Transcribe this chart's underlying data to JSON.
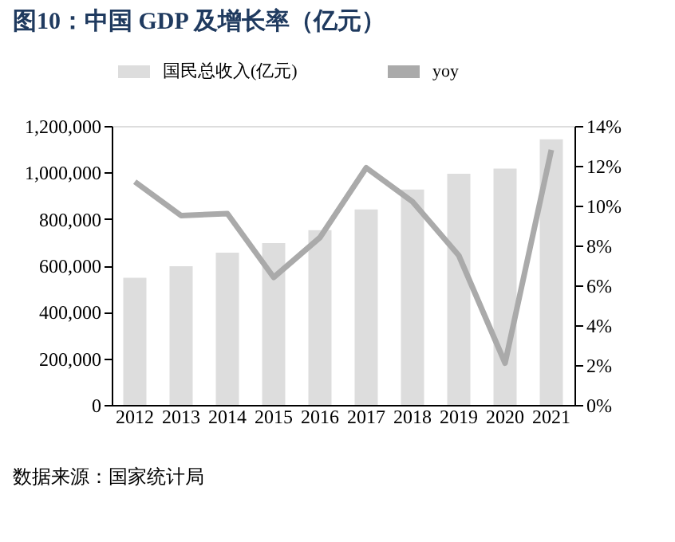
{
  "chart_data": {
    "type": "bar",
    "title": "图10：中国 GDP 及增长率（亿元）",
    "categories": [
      "2012",
      "2013",
      "2014",
      "2015",
      "2016",
      "2017",
      "2018",
      "2019",
      "2020",
      "2021"
    ],
    "series": [
      {
        "name": "国民总收入(亿元)",
        "color": "#dddddd",
        "values": [
          547000,
          597000,
          655000,
          696000,
          752000,
          841000,
          927000,
          994000,
          1017000,
          1143000
        ]
      },
      {
        "name": "yoy",
        "type": "line",
        "axis": "y2",
        "color": "#aaaaaa",
        "values": [
          11.2,
          9.5,
          9.6,
          6.4,
          8.4,
          11.9,
          10.2,
          7.5,
          2.1,
          12.8
        ]
      }
    ],
    "ylim": [
      0,
      1200000
    ],
    "yticks": [
      0,
      {
        "value": 200000,
        "label": "200,000"
      },
      {
        "value": 400000,
        "label": "400,000"
      },
      {
        "value": 600000,
        "label": "600,000"
      },
      {
        "value": 800000,
        "label": "800,000"
      },
      {
        "value": 1000000,
        "label": "1,000,000"
      },
      {
        "value": 1200000,
        "label": "1,200,000"
      }
    ],
    "y2lim": [
      0,
      14
    ],
    "y2ticks": [
      {
        "value": 0,
        "label": "0%"
      },
      {
        "value": 2,
        "label": "2%"
      },
      {
        "value": 4,
        "label": "4%"
      },
      {
        "value": 6,
        "label": "6%"
      },
      {
        "value": 8,
        "label": "8%"
      },
      {
        "value": 10,
        "label": "10%"
      },
      {
        "value": 12,
        "label": "12%"
      },
      {
        "value": 14,
        "label": "14%"
      }
    ],
    "legend": "top",
    "grid": false,
    "marker": "none",
    "line_style": "solid",
    "annotations": [
      "数据来源：国家统计局"
    ]
  }
}
